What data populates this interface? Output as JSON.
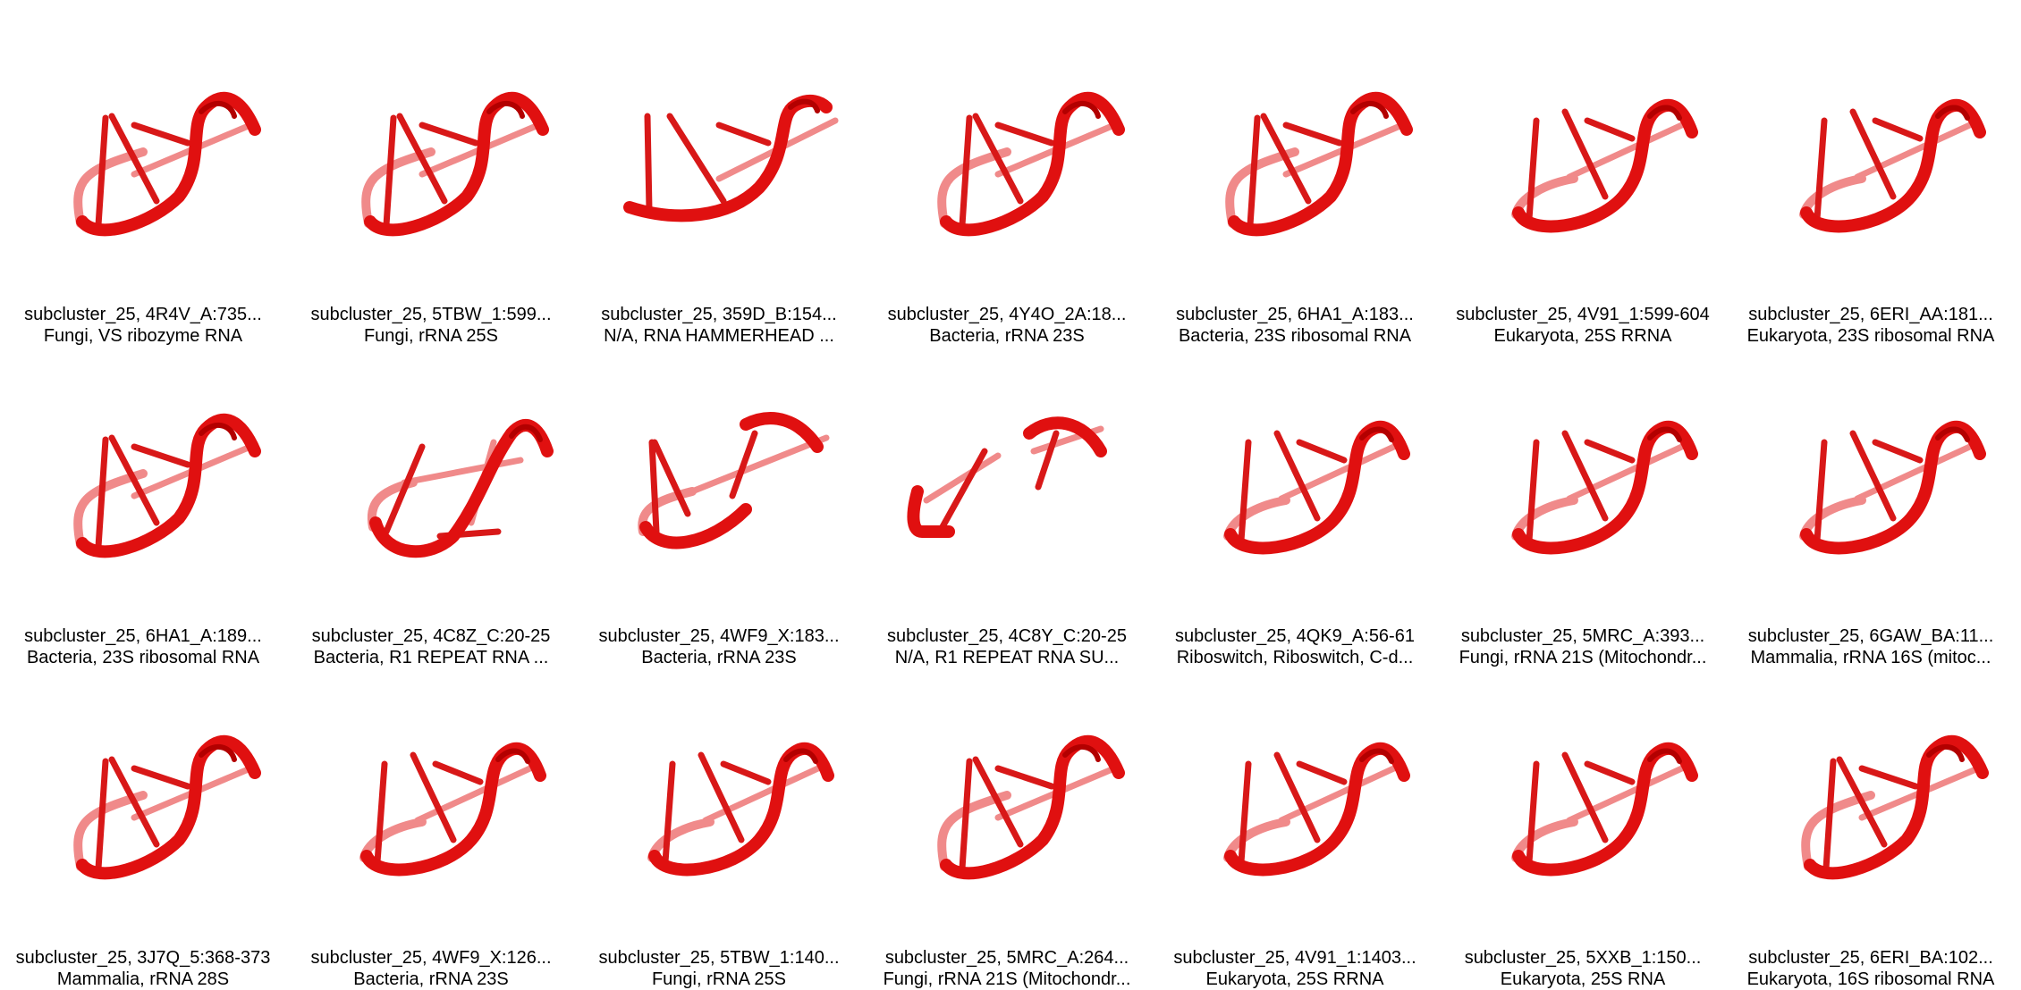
{
  "colors": {
    "strand": "#e01010",
    "strand_dark": "#b30000",
    "rung": "#d81818",
    "rung_light": "#f08a8a"
  },
  "items": [
    {
      "title": "subcluster_25, 4R4V_A:735...",
      "subtitle": "Fungi, VS ribozyme RNA",
      "variant": "a"
    },
    {
      "title": "subcluster_25, 5TBW_1:599...",
      "subtitle": "Fungi, rRNA 25S",
      "variant": "a"
    },
    {
      "title": "subcluster_25, 359D_B:154...",
      "subtitle": "N/A, RNA HAMMERHEAD ...",
      "variant": "c"
    },
    {
      "title": "subcluster_25, 4Y4O_2A:18...",
      "subtitle": "Bacteria, rRNA 23S",
      "variant": "a"
    },
    {
      "title": "subcluster_25, 6HA1_A:183...",
      "subtitle": "Bacteria, 23S ribosomal RNA",
      "variant": "a"
    },
    {
      "title": "subcluster_25, 4V91_1:599-604",
      "subtitle": "Eukaryota, 25S RRNA",
      "variant": "b"
    },
    {
      "title": "subcluster_25, 6ERI_AA:181...",
      "subtitle": "Eukaryota, 23S ribosomal RNA",
      "variant": "b"
    },
    {
      "title": "subcluster_25, 6HA1_A:189...",
      "subtitle": "Bacteria, 23S ribosomal RNA",
      "variant": "a"
    },
    {
      "title": "subcluster_25, 4C8Z_C:20-25",
      "subtitle": "Bacteria, R1 REPEAT RNA ...",
      "variant": "d"
    },
    {
      "title": "subcluster_25, 4WF9_X:183...",
      "subtitle": "Bacteria, rRNA 23S",
      "variant": "e"
    },
    {
      "title": "subcluster_25, 4C8Y_C:20-25",
      "subtitle": "N/A, R1 REPEAT RNA SU...",
      "variant": "f"
    },
    {
      "title": "subcluster_25, 4QK9_A:56-61",
      "subtitle": "Riboswitch, Riboswitch, C-d...",
      "variant": "b"
    },
    {
      "title": "subcluster_25, 5MRC_A:393...",
      "subtitle": "Fungi, rRNA 21S (Mitochondr...",
      "variant": "b"
    },
    {
      "title": "subcluster_25, 6GAW_BA:11...",
      "subtitle": "Mammalia, rRNA 16S (mitoc...",
      "variant": "b"
    },
    {
      "title": "subcluster_25, 3J7Q_5:368-373",
      "subtitle": "Mammalia, rRNA 28S",
      "variant": "a"
    },
    {
      "title": "subcluster_25, 4WF9_X:126...",
      "subtitle": "Bacteria, rRNA 23S",
      "variant": "b"
    },
    {
      "title": "subcluster_25, 5TBW_1:140...",
      "subtitle": "Fungi, rRNA 25S",
      "variant": "b"
    },
    {
      "title": "subcluster_25, 5MRC_A:264...",
      "subtitle": "Fungi, rRNA 21S (Mitochondr...",
      "variant": "a"
    },
    {
      "title": "subcluster_25, 4V91_1:1403...",
      "subtitle": "Eukaryota, 25S RRNA",
      "variant": "b"
    },
    {
      "title": "subcluster_25, 5XXB_1:150...",
      "subtitle": "Eukaryota, 25S RNA",
      "variant": "b"
    },
    {
      "title": "subcluster_25, 6ERI_BA:102...",
      "subtitle": "Eukaryota, 16S ribosomal RNA",
      "variant": "a"
    }
  ]
}
